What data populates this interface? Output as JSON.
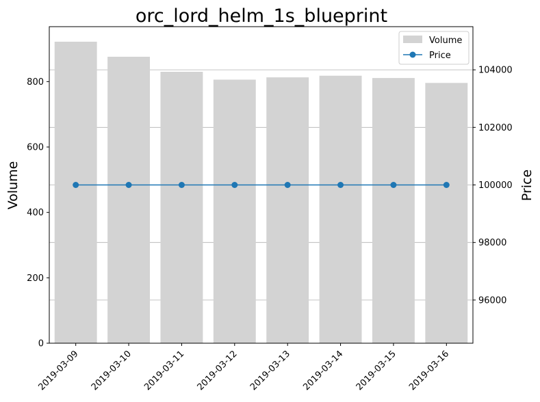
{
  "chart_data": {
    "type": "bar+line",
    "title": "orc_lord_helm_1s_blueprint",
    "categories": [
      "2019-03-09",
      "2019-03-10",
      "2019-03-11",
      "2019-03-12",
      "2019-03-13",
      "2019-03-14",
      "2019-03-15",
      "2019-03-16"
    ],
    "series": [
      {
        "name": "Volume",
        "type": "bar",
        "axis": "left",
        "color": "#d3d3d3",
        "values": [
          922,
          876,
          830,
          806,
          813,
          818,
          811,
          796
        ]
      },
      {
        "name": "Price",
        "type": "line",
        "axis": "right",
        "color": "#1f77b4",
        "marker": "circle",
        "values": [
          100000,
          100000,
          100000,
          100000,
          100000,
          100000,
          100000,
          100000
        ]
      }
    ],
    "ylabel_left": "Volume",
    "ylabel_right": "Price",
    "ylim_left": [
      0,
      968
    ],
    "ylim_right": [
      94500,
      105500
    ],
    "yticks_left": [
      0,
      200,
      400,
      600,
      800
    ],
    "yticks_right": [
      96000,
      98000,
      100000,
      102000,
      104000
    ],
    "grid": "horizontal lines at right-axis ticks",
    "legend_position": "top-right",
    "xtick_rotation": 45
  }
}
